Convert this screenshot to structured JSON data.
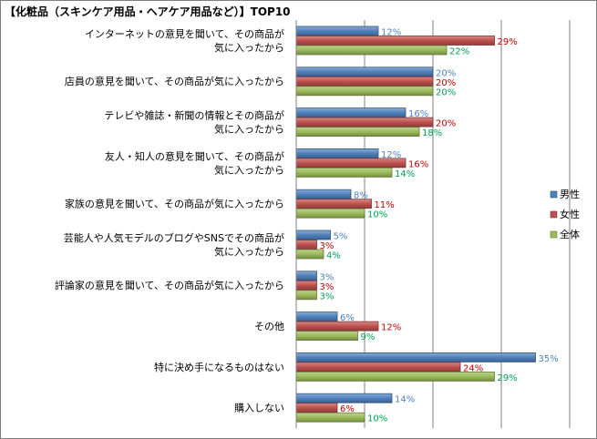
{
  "title": "【化粧品（スキンケア用品・ヘアケア用品など）】TOP10",
  "chart_data": {
    "type": "bar",
    "orientation": "horizontal",
    "title": "【化粧品（スキンケア用品・ヘアケア用品など）】TOP10",
    "categories": [
      "インターネットの意見を聞いて、その商品が\n気に入ったから",
      "店員の意見を聞いて、その商品が気に入ったから",
      "テレビや雑誌・新聞の情報とその商品が\n気に入ったから",
      "友人・知人の意見を聞いて、その商品が\n気に入ったから",
      "家族の意見を聞いて、その商品が気に入ったから",
      "芸能人や人気モデルのブログやSNSでその商品が\n気に入ったから",
      "評論家の意見を聞いて、その商品が気に入ったから",
      "その他",
      "特に決め手になるものはない",
      "購入しない"
    ],
    "series": [
      {
        "name": "男性",
        "color": "#4f81bd",
        "label_color": "#4f81bd",
        "values": [
          12,
          20,
          16,
          12,
          8,
          5,
          3,
          6,
          35,
          14
        ]
      },
      {
        "name": "女性",
        "color": "#c0504d",
        "label_color": "#c00000",
        "values": [
          29,
          20,
          20,
          16,
          11,
          3,
          3,
          12,
          24,
          6
        ]
      },
      {
        "name": "全体",
        "color": "#9bbb59",
        "label_color": "#00a050",
        "values": [
          22,
          20,
          18,
          14,
          10,
          4,
          3,
          9,
          29,
          10
        ]
      }
    ],
    "value_suffix": "%",
    "xlim": [
      0,
      40
    ],
    "grid": true,
    "legend_position": "right"
  }
}
